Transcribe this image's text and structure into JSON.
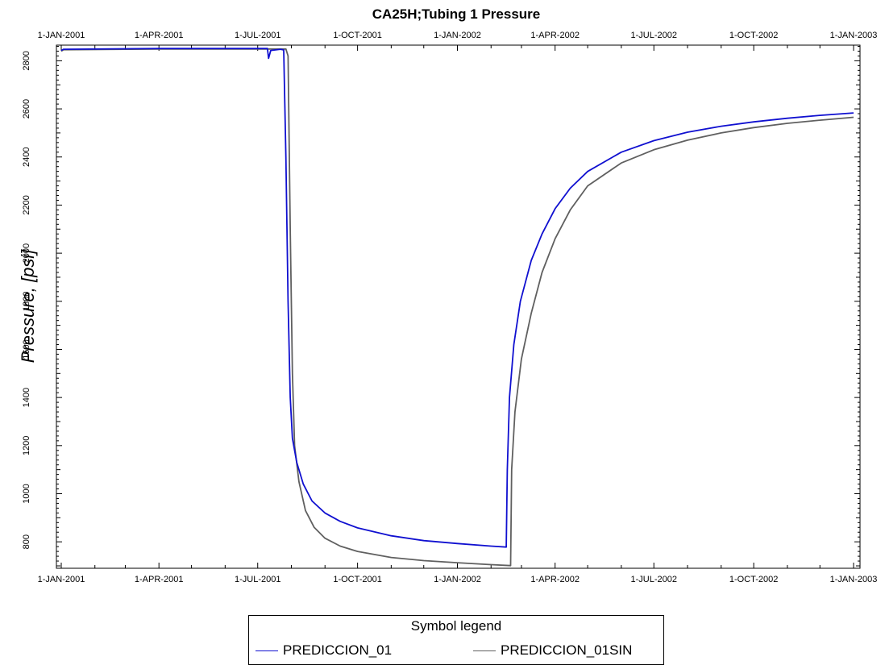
{
  "chart_data": {
    "type": "line",
    "title": "CA25H;Tubing 1 Pressure",
    "ylabel": "Pressure, [psi]",
    "xlabel": "",
    "x_ticks": [
      "1-JAN-2001",
      "1-APR-2001",
      "1-JUL-2001",
      "1-OCT-2001",
      "1-JAN-2002",
      "1-APR-2002",
      "1-JUL-2002",
      "1-OCT-2002",
      "1-JAN-2003"
    ],
    "y_ticks": [
      800,
      1000,
      1200,
      1400,
      1600,
      1800,
      2000,
      2200,
      2400,
      2600,
      2800
    ],
    "xlim": [
      "2001-01-01",
      "2003-01-01"
    ],
    "ylim": [
      690,
      2865
    ],
    "grid": false,
    "series": [
      {
        "name": "PREDICCION_01",
        "color": "#1010d0",
        "points": [
          [
            "2001-01-01",
            2843
          ],
          [
            "2001-01-03",
            2848
          ],
          [
            "2001-04-01",
            2851
          ],
          [
            "2001-07-01",
            2851
          ],
          [
            "2001-07-10",
            2851
          ],
          [
            "2001-07-11",
            2810
          ],
          [
            "2001-07-13",
            2843
          ],
          [
            "2001-07-22",
            2848
          ],
          [
            "2001-07-25",
            2845
          ],
          [
            "2001-07-27",
            2400
          ],
          [
            "2001-07-29",
            1800
          ],
          [
            "2001-07-31",
            1400
          ],
          [
            "2001-08-02",
            1230
          ],
          [
            "2001-08-06",
            1130
          ],
          [
            "2001-08-12",
            1040
          ],
          [
            "2001-08-20",
            970
          ],
          [
            "2001-09-01",
            920
          ],
          [
            "2001-09-15",
            885
          ],
          [
            "2001-10-01",
            858
          ],
          [
            "2001-11-01",
            825
          ],
          [
            "2001-12-01",
            805
          ],
          [
            "2002-01-01",
            793
          ],
          [
            "2002-02-01",
            782
          ],
          [
            "2002-02-15",
            778
          ],
          [
            "2002-02-16",
            1100
          ],
          [
            "2002-02-18",
            1400
          ],
          [
            "2002-02-22",
            1620
          ],
          [
            "2002-02-28",
            1800
          ],
          [
            "2002-03-10",
            1970
          ],
          [
            "2002-03-20",
            2080
          ],
          [
            "2002-04-01",
            2185
          ],
          [
            "2002-04-15",
            2270
          ],
          [
            "2002-05-01",
            2340
          ],
          [
            "2002-06-01",
            2420
          ],
          [
            "2002-07-01",
            2468
          ],
          [
            "2002-08-01",
            2503
          ],
          [
            "2002-09-01",
            2528
          ],
          [
            "2002-10-01",
            2546
          ],
          [
            "2002-11-01",
            2561
          ],
          [
            "2002-12-01",
            2573
          ],
          [
            "2003-01-01",
            2583
          ]
        ]
      },
      {
        "name": "PREDICCION_01SIN",
        "color": "#606060",
        "points": [
          [
            "2001-01-01",
            2840
          ],
          [
            "2001-01-03",
            2846
          ],
          [
            "2001-04-01",
            2849
          ],
          [
            "2001-07-01",
            2849
          ],
          [
            "2001-07-20",
            2849
          ],
          [
            "2001-07-27",
            2849
          ],
          [
            "2001-07-29",
            2820
          ],
          [
            "2001-07-31",
            2100
          ],
          [
            "2001-08-02",
            1500
          ],
          [
            "2001-08-04",
            1200
          ],
          [
            "2001-08-08",
            1050
          ],
          [
            "2001-08-14",
            930
          ],
          [
            "2001-08-22",
            860
          ],
          [
            "2001-09-01",
            815
          ],
          [
            "2001-09-15",
            782
          ],
          [
            "2001-10-01",
            760
          ],
          [
            "2001-11-01",
            735
          ],
          [
            "2001-12-01",
            722
          ],
          [
            "2002-01-01",
            713
          ],
          [
            "2002-02-01",
            705
          ],
          [
            "2002-02-19",
            701
          ],
          [
            "2002-02-20",
            1100
          ],
          [
            "2002-02-23",
            1340
          ],
          [
            "2002-03-01",
            1560
          ],
          [
            "2002-03-10",
            1750
          ],
          [
            "2002-03-20",
            1920
          ],
          [
            "2002-04-01",
            2060
          ],
          [
            "2002-04-15",
            2180
          ],
          [
            "2002-05-01",
            2280
          ],
          [
            "2002-06-01",
            2375
          ],
          [
            "2002-07-01",
            2430
          ],
          [
            "2002-08-01",
            2470
          ],
          [
            "2002-09-01",
            2500
          ],
          [
            "2002-10-01",
            2522
          ],
          [
            "2002-11-01",
            2540
          ],
          [
            "2002-12-01",
            2553
          ],
          [
            "2003-01-01",
            2565
          ]
        ]
      }
    ],
    "legend": {
      "title": "Symbol legend",
      "placement": "bottom-center"
    }
  }
}
